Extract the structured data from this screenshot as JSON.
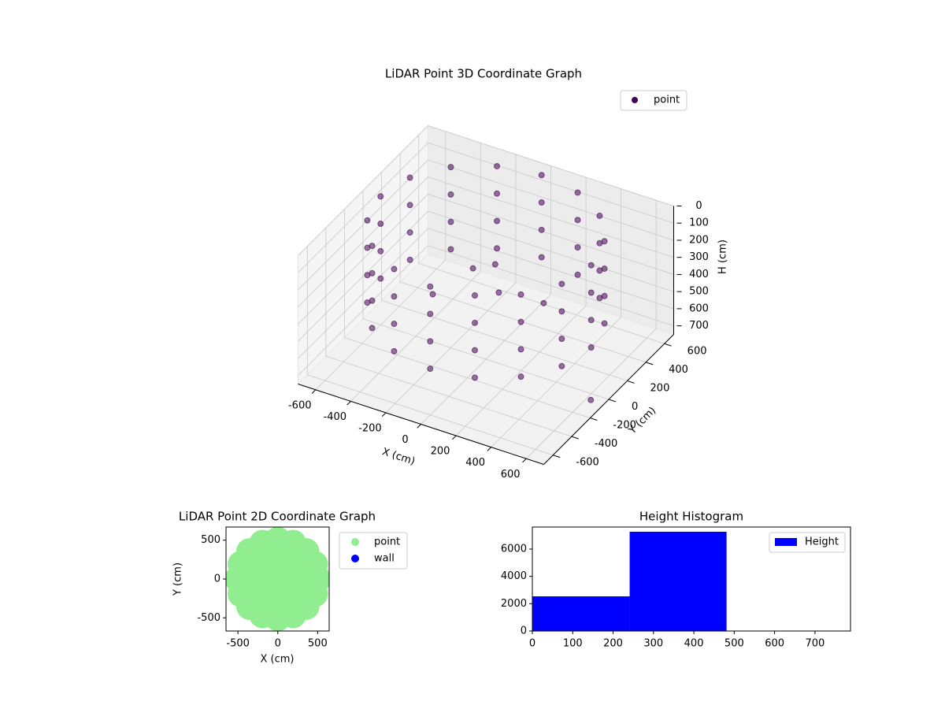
{
  "chart_data": [
    {
      "type": "scatter3d",
      "title": "LiDAR Point 3D Coordinate Graph",
      "xlabel": "X (cm)",
      "ylabel": "Y (cm)",
      "zlabel": "H (cm)",
      "xlim": [
        -700,
        700
      ],
      "ylim": [
        -700,
        700
      ],
      "zlim": [
        0,
        750
      ],
      "zinverted": true,
      "xticks": [
        -600,
        -400,
        -200,
        0,
        200,
        400,
        600
      ],
      "yticks": [
        -600,
        -400,
        -200,
        0,
        200,
        400,
        600
      ],
      "zticks": [
        0,
        100,
        200,
        300,
        400,
        500,
        600,
        700
      ],
      "grid": true,
      "legend": "upper right",
      "series": [
        {
          "name": "point",
          "color": "#440154",
          "x": [
            600,
            554,
            424,
            230,
            0,
            -230,
            -424,
            -554,
            -600,
            -554,
            -424,
            -230,
            0,
            230,
            424,
            554,
            600,
            554,
            424,
            230,
            0,
            -230,
            -424,
            -554,
            -600,
            -554,
            -424,
            -230,
            0,
            230,
            424,
            554,
            600,
            554,
            424,
            230,
            0,
            -230,
            -424,
            -554,
            -600,
            -554,
            -424,
            -230,
            0,
            230,
            424,
            554,
            600,
            554,
            424,
            230,
            0,
            -230,
            -424,
            -554,
            -600,
            -554,
            -424,
            -230,
            0,
            230,
            424,
            554,
            0,
            -100,
            100,
            -250,
            250,
            640
          ],
          "y": [
            0,
            230,
            424,
            554,
            600,
            554,
            424,
            230,
            0,
            -230,
            -424,
            -554,
            -600,
            -554,
            -424,
            -230,
            0,
            230,
            424,
            554,
            600,
            554,
            424,
            230,
            0,
            -230,
            -424,
            -554,
            -600,
            -554,
            -424,
            -230,
            0,
            230,
            424,
            554,
            600,
            554,
            424,
            230,
            0,
            -230,
            -424,
            -554,
            -600,
            -554,
            -424,
            -230,
            0,
            230,
            424,
            554,
            600,
            554,
            424,
            230,
            0,
            -230,
            -424,
            -554,
            -600,
            -554,
            -424,
            -230,
            100,
            50,
            -50,
            -100,
            150,
            -80
          ],
          "z": [
            0,
            0,
            0,
            0,
            0,
            0,
            0,
            0,
            0,
            0,
            0,
            0,
            0,
            0,
            0,
            0,
            160,
            160,
            160,
            160,
            160,
            160,
            160,
            160,
            160,
            160,
            160,
            160,
            160,
            160,
            160,
            160,
            320,
            320,
            320,
            320,
            320,
            320,
            320,
            320,
            320,
            320,
            320,
            320,
            320,
            320,
            320,
            320,
            480,
            480,
            480,
            480,
            480,
            480,
            480,
            480,
            480,
            480,
            480,
            480,
            480,
            480,
            480,
            480,
            250,
            280,
            300,
            400,
            420,
            730
          ]
        }
      ]
    },
    {
      "type": "scatter",
      "title": "LiDAR Point 2D Coordinate Graph",
      "xlabel": "X (cm)",
      "ylabel": "Y (cm)",
      "xlim": [
        -650,
        645
      ],
      "ylim": [
        -670,
        670
      ],
      "xticks": [
        -500,
        0,
        500
      ],
      "yticks": [
        -500,
        0,
        500
      ],
      "legend": "outside right",
      "series": [
        {
          "name": "point",
          "color": "#90ee90",
          "x": [
            500,
            462,
            354,
            191,
            0,
            -191,
            -354,
            -462,
            -500,
            -462,
            -354,
            -191,
            0,
            191,
            354,
            462,
            250,
            177,
            0,
            -177,
            -250,
            -177,
            0,
            177,
            0
          ],
          "y": [
            0,
            191,
            354,
            462,
            500,
            462,
            354,
            191,
            0,
            -191,
            -354,
            -462,
            -500,
            -462,
            -354,
            -191,
            0,
            177,
            250,
            177,
            0,
            -177,
            -250,
            -177,
            0
          ]
        },
        {
          "name": "wall",
          "color": "#0000ff",
          "x": [],
          "y": []
        }
      ]
    },
    {
      "type": "histogram",
      "title": "Height Histogram",
      "name": "Height",
      "color": "#0000ff",
      "bins": [
        0,
        241,
        481,
        722
      ],
      "counts": [
        2540,
        7270,
        1
      ],
      "xlim": [
        0,
        788
      ],
      "ylim": [
        0,
        7615
      ],
      "xticks": [
        0,
        100,
        200,
        300,
        400,
        500,
        600,
        700
      ],
      "yticks": [
        0,
        2000,
        4000,
        6000
      ],
      "legend": "upper right"
    }
  ]
}
